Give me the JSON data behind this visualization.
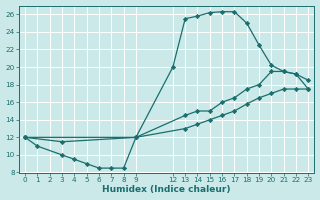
{
  "xlabel": "Humidex (Indice chaleur)",
  "bg_color": "#cce9e9",
  "grid_color": "#c0dada",
  "line_color": "#1a6e6e",
  "xlim": [
    -0.5,
    23.5
  ],
  "ylim": [
    8,
    27
  ],
  "xtick_positions": [
    0,
    1,
    2,
    3,
    4,
    5,
    6,
    7,
    8,
    9,
    12,
    13,
    14,
    15,
    16,
    17,
    18,
    19,
    20,
    21,
    22,
    23
  ],
  "ytick_positions": [
    8,
    10,
    12,
    14,
    16,
    18,
    20,
    22,
    24,
    26
  ],
  "line1_x": [
    0,
    1,
    3,
    4,
    5,
    6,
    7,
    8,
    9,
    12,
    13,
    14,
    15,
    16,
    17,
    18,
    19,
    20,
    21,
    22,
    23
  ],
  "line1_y": [
    12,
    11,
    10,
    9.5,
    9,
    8.5,
    8.5,
    8.5,
    12,
    20,
    25.5,
    25.8,
    26.2,
    26.3,
    26.3,
    25,
    22.5,
    20.2,
    19.5,
    19.2,
    17.5
  ],
  "line2_x": [
    0,
    3,
    9,
    13,
    14,
    15,
    16,
    17,
    18,
    19,
    20,
    21,
    22,
    23
  ],
  "line2_y": [
    12,
    11.5,
    12,
    14.5,
    15,
    15,
    16.0,
    16.5,
    17.5,
    18.0,
    19.5,
    19.5,
    19.2,
    18.5
  ],
  "line3_x": [
    0,
    9,
    13,
    14,
    15,
    16,
    17,
    18,
    19,
    20,
    21,
    22,
    23
  ],
  "line3_y": [
    12,
    12.0,
    13.0,
    13.5,
    14.0,
    14.5,
    15.0,
    15.8,
    16.5,
    17.0,
    17.5,
    17.5,
    17.5
  ]
}
